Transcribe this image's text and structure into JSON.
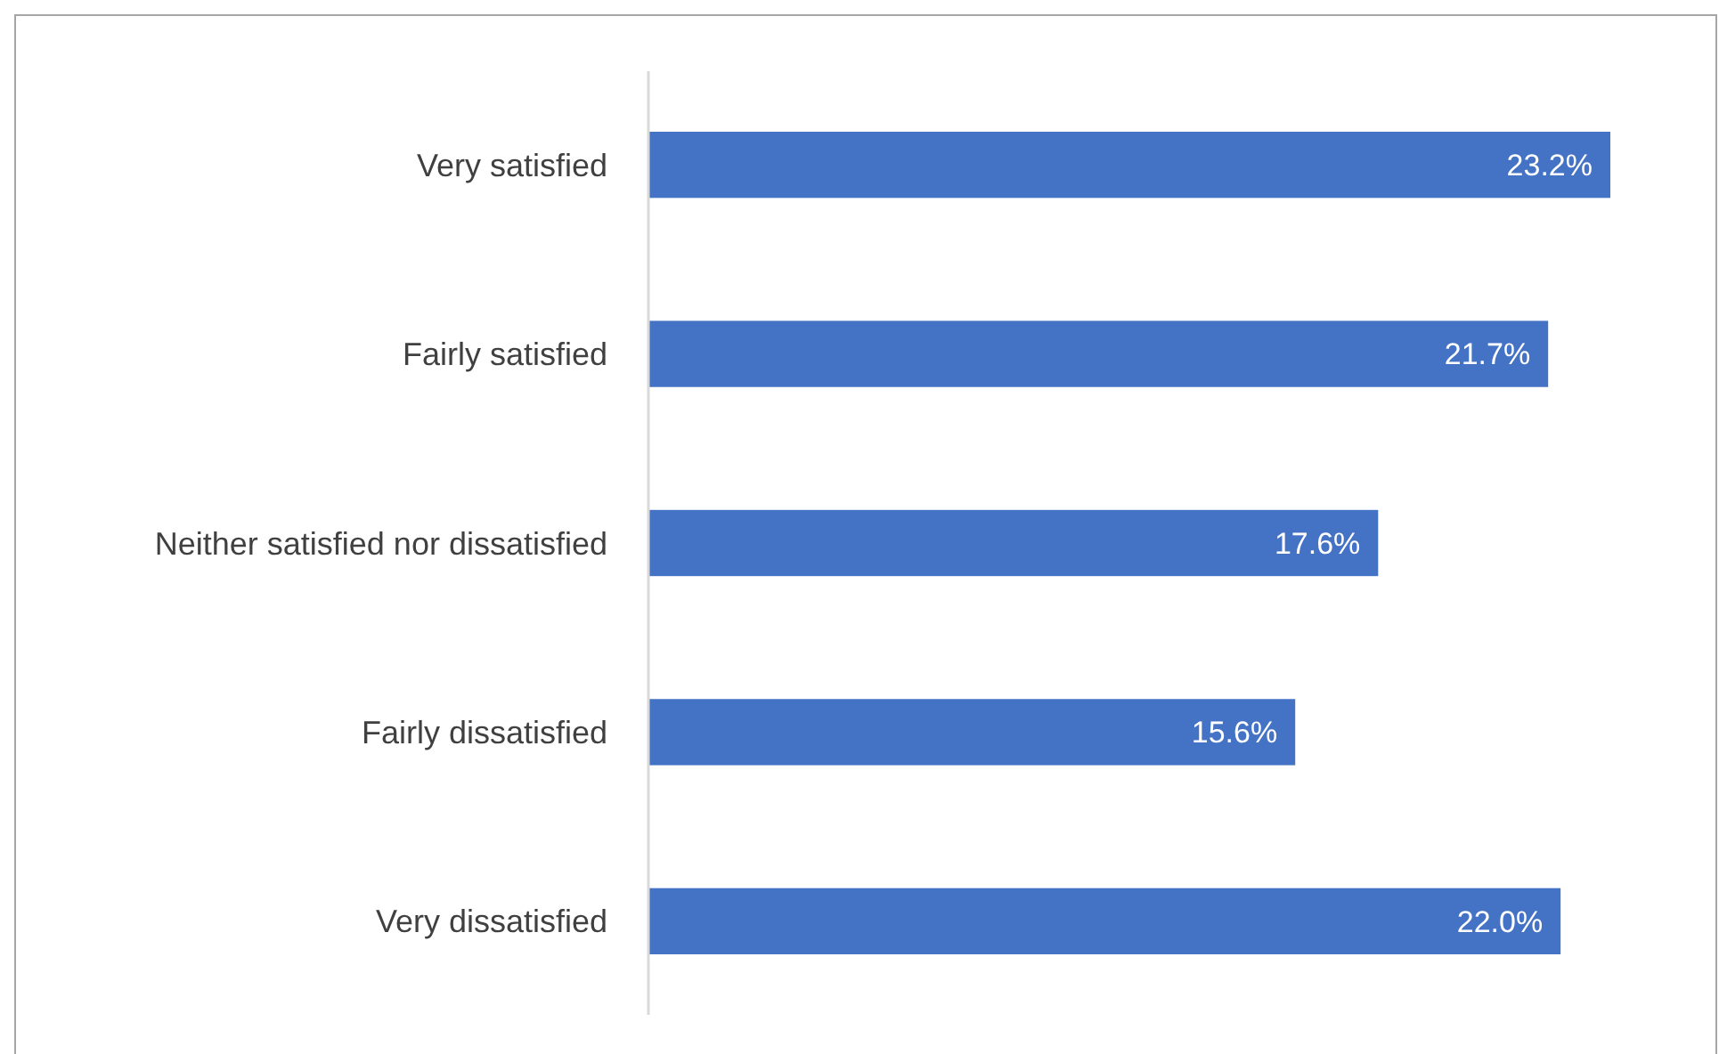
{
  "chart_data": {
    "type": "bar",
    "orientation": "horizontal",
    "categories": [
      "Very satisfied",
      "Fairly satisfied",
      "Neither satisfied nor dissatisfied",
      "Fairly dissatisfied",
      "Very dissatisfied"
    ],
    "values": [
      23.2,
      21.7,
      17.6,
      15.6,
      22.0
    ],
    "value_labels": [
      "23.2%",
      "21.7%",
      "17.6%",
      "15.6%",
      "22.0%"
    ],
    "color": "#4472c4"
  }
}
